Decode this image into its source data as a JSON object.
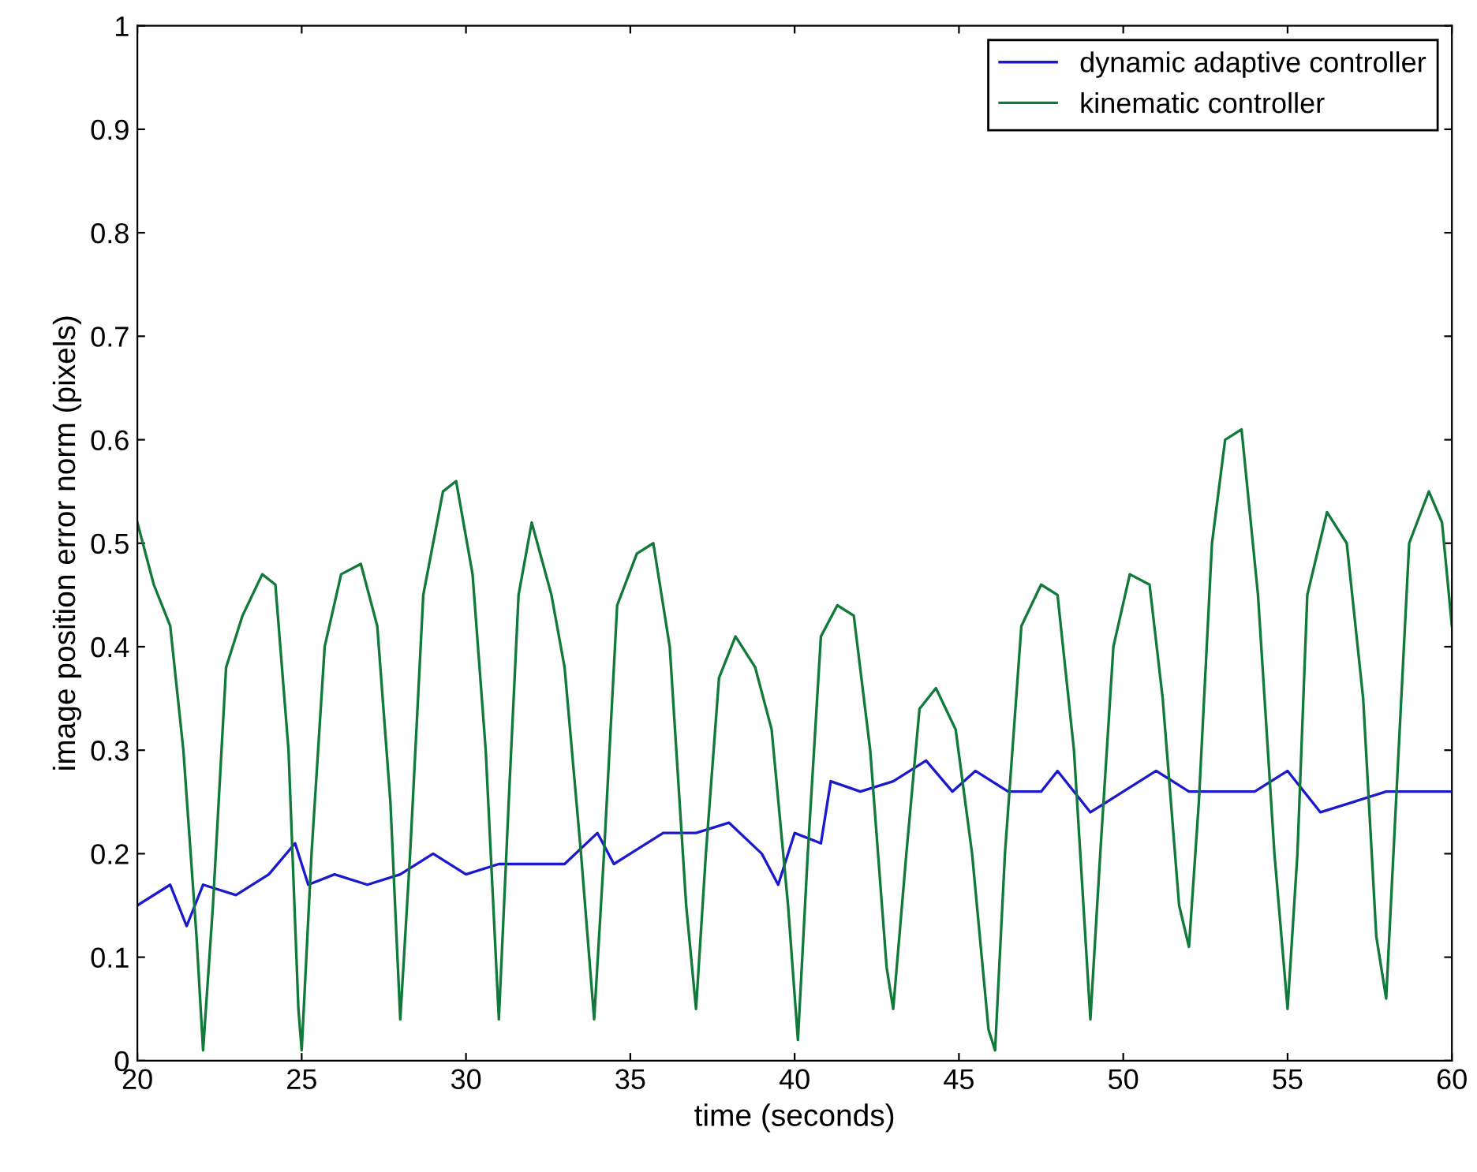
{
  "chart_data": {
    "type": "line",
    "xlabel": "time (seconds)",
    "ylabel": "image position error norm (pixels)",
    "xlim": [
      20,
      60
    ],
    "ylim": [
      0,
      1
    ],
    "xticks": [
      20,
      25,
      30,
      35,
      40,
      45,
      50,
      55,
      60
    ],
    "yticks": [
      0,
      0.1,
      0.2,
      0.3,
      0.4,
      0.5,
      0.6,
      0.7,
      0.8,
      0.9,
      1
    ],
    "grid": false,
    "legend": "top right",
    "line_style": "solid",
    "marker": "none",
    "series": [
      {
        "name": "dynamic adaptive controller",
        "color": "#1a1acc",
        "x": [
          20,
          21,
          21.5,
          22,
          23,
          24,
          24.8,
          25.2,
          26,
          27,
          28,
          29,
          30,
          31,
          32,
          33,
          34,
          34.5,
          35,
          36,
          37,
          38,
          39,
          39.5,
          40,
          40.8,
          41.1,
          42,
          43,
          44,
          44.8,
          45.5,
          46.5,
          47.5,
          48,
          49,
          50,
          51,
          52,
          53,
          54,
          55,
          56,
          57,
          58,
          59,
          60
        ],
        "values": [
          0.15,
          0.17,
          0.13,
          0.17,
          0.16,
          0.18,
          0.21,
          0.17,
          0.18,
          0.17,
          0.18,
          0.2,
          0.18,
          0.19,
          0.19,
          0.19,
          0.22,
          0.19,
          0.2,
          0.22,
          0.22,
          0.23,
          0.2,
          0.17,
          0.22,
          0.21,
          0.27,
          0.26,
          0.27,
          0.29,
          0.26,
          0.28,
          0.26,
          0.26,
          0.28,
          0.24,
          0.26,
          0.28,
          0.26,
          0.26,
          0.26,
          0.28,
          0.24,
          0.25,
          0.26,
          0.26,
          0.26
        ]
      },
      {
        "name": "kinematic controller",
        "color": "#117a3a",
        "x": [
          20,
          20.5,
          21,
          21.4,
          21.8,
          22.0,
          22.3,
          22.7,
          23.2,
          23.8,
          24.2,
          24.6,
          24.9,
          25.0,
          25.3,
          25.7,
          26.2,
          26.8,
          27.3,
          27.7,
          28.0,
          28.3,
          28.7,
          29.3,
          29.7,
          30.2,
          30.6,
          31.0,
          31.3,
          31.6,
          32.0,
          32.6,
          33.0,
          33.5,
          33.9,
          34.2,
          34.6,
          35.2,
          35.7,
          36.2,
          36.7,
          37.0,
          37.3,
          37.7,
          38.2,
          38.8,
          39.3,
          39.8,
          40.1,
          40.4,
          40.8,
          41.3,
          41.8,
          42.3,
          42.8,
          43.0,
          43.4,
          43.8,
          44.3,
          44.9,
          45.4,
          45.9,
          46.1,
          46.4,
          46.9,
          47.5,
          48.0,
          48.5,
          49.0,
          49.3,
          49.7,
          50.2,
          50.8,
          51.2,
          51.7,
          52.0,
          52.3,
          52.7,
          53.1,
          53.6,
          54.1,
          54.6,
          55.0,
          55.3,
          55.6,
          56.2,
          56.8,
          57.3,
          57.7,
          58.0,
          58.3,
          58.7,
          59.3,
          59.7,
          60.0
        ],
        "values": [
          0.52,
          0.46,
          0.42,
          0.3,
          0.12,
          0.01,
          0.15,
          0.38,
          0.43,
          0.47,
          0.46,
          0.3,
          0.05,
          0.01,
          0.2,
          0.4,
          0.47,
          0.48,
          0.42,
          0.25,
          0.04,
          0.2,
          0.45,
          0.55,
          0.56,
          0.47,
          0.3,
          0.04,
          0.25,
          0.45,
          0.52,
          0.45,
          0.38,
          0.2,
          0.04,
          0.2,
          0.44,
          0.49,
          0.5,
          0.4,
          0.15,
          0.05,
          0.2,
          0.37,
          0.41,
          0.38,
          0.32,
          0.15,
          0.02,
          0.2,
          0.41,
          0.44,
          0.43,
          0.3,
          0.09,
          0.05,
          0.2,
          0.34,
          0.36,
          0.32,
          0.2,
          0.03,
          0.01,
          0.2,
          0.42,
          0.46,
          0.45,
          0.3,
          0.04,
          0.2,
          0.4,
          0.47,
          0.46,
          0.35,
          0.15,
          0.11,
          0.25,
          0.5,
          0.6,
          0.61,
          0.45,
          0.2,
          0.05,
          0.2,
          0.45,
          0.53,
          0.5,
          0.35,
          0.12,
          0.06,
          0.25,
          0.5,
          0.55,
          0.52,
          0.42
        ]
      }
    ]
  }
}
